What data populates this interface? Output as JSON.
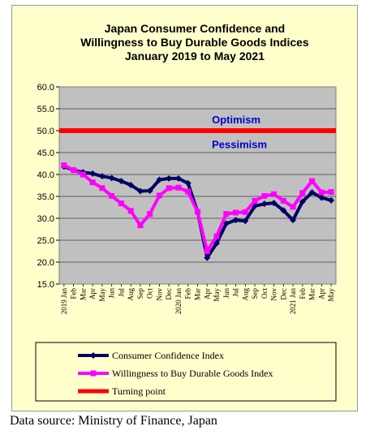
{
  "chart_data": {
    "type": "line",
    "title": [
      "Japan Consumer Confidence and",
      "Willingness to Buy Durable Goods Indices",
      "January 2019 to May 2021"
    ],
    "x": [
      "2019 Jan",
      "Feb",
      "Mar",
      "Apr",
      "May",
      "Jun",
      "Jul",
      "Aug",
      "Sep",
      "Oct",
      "Nov",
      "Dec",
      "2020 Jan",
      "Feb",
      "Mar",
      "Apr",
      "May",
      "Jun",
      "Jul",
      "Aug",
      "Sep",
      "Oct",
      "Nov",
      "Dec",
      "2021 Jan",
      "Feb",
      "Mar",
      "Apr",
      "May"
    ],
    "ylim": [
      15.0,
      60.0
    ],
    "yticks": [
      "60.0",
      "55.0",
      "50.0",
      "45.0",
      "40.0",
      "35.0",
      "30.0",
      "25.0",
      "20.0",
      "15.0"
    ],
    "grid": true,
    "series": [
      {
        "name": "Consumer Confidence Index",
        "color": "#000066",
        "values": [
          41.8,
          41.0,
          40.5,
          40.2,
          39.6,
          39.2,
          38.5,
          37.6,
          36.2,
          36.3,
          38.8,
          39.1,
          39.1,
          38.0,
          31.5,
          21.0,
          24.3,
          28.8,
          29.6,
          29.4,
          32.8,
          33.3,
          33.5,
          31.8,
          29.6,
          33.8,
          35.9,
          34.7,
          34.1
        ]
      },
      {
        "name": "Willingness to Buy Durable Goods Index",
        "color": "#ff00ff",
        "values": [
          42.1,
          41.0,
          40.0,
          38.2,
          36.9,
          35.1,
          33.4,
          31.7,
          28.4,
          31.0,
          35.2,
          36.9,
          37.0,
          36.1,
          31.5,
          22.5,
          25.9,
          31.0,
          31.3,
          31.4,
          34.0,
          35.1,
          35.5,
          34.0,
          32.6,
          35.8,
          38.5,
          35.9,
          36.0
        ]
      },
      {
        "name": "Turning point",
        "color": "#ff0000",
        "values": [
          50,
          50,
          50,
          50,
          50,
          50,
          50,
          50,
          50,
          50,
          50,
          50,
          50,
          50,
          50,
          50,
          50,
          50,
          50,
          50,
          50,
          50,
          50,
          50,
          50,
          50,
          50,
          50,
          50
        ]
      }
    ],
    "annotations": [
      {
        "text": "Optimism",
        "x": 12.2,
        "y": 52.4,
        "color": "#0000cc"
      },
      {
        "text": "Pessimism",
        "x": 12.2,
        "y": 46.8,
        "color": "#0000cc"
      }
    ],
    "legend_placement": "bottom"
  },
  "caption": "Data source: Ministry of Finance, Japan"
}
